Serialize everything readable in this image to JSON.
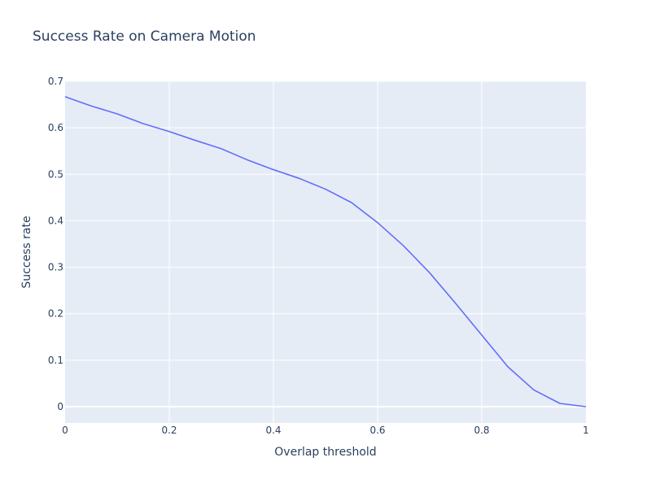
{
  "chart_data": {
    "type": "line",
    "title": "Success Rate on Camera Motion",
    "xlabel": "Overlap threshold",
    "ylabel": "Success rate",
    "xlim": [
      0,
      1
    ],
    "ylim": [
      -0.035,
      0.7
    ],
    "grid": true,
    "colors": {
      "plot_bg": "#e5ecf6",
      "grid": "#ffffff",
      "line": "#636efa",
      "text": "#2a3f5f"
    },
    "x_ticks": [
      {
        "value": 0,
        "label": "0"
      },
      {
        "value": 0.2,
        "label": "0.2"
      },
      {
        "value": 0.4,
        "label": "0.4"
      },
      {
        "value": 0.6,
        "label": "0.6"
      },
      {
        "value": 0.8,
        "label": "0.8"
      },
      {
        "value": 1,
        "label": "1"
      }
    ],
    "y_ticks": [
      {
        "value": 0,
        "label": "0"
      },
      {
        "value": 0.1,
        "label": "0.1"
      },
      {
        "value": 0.2,
        "label": "0.2"
      },
      {
        "value": 0.3,
        "label": "0.3"
      },
      {
        "value": 0.4,
        "label": "0.4"
      },
      {
        "value": 0.5,
        "label": "0.5"
      },
      {
        "value": 0.6,
        "label": "0.6"
      },
      {
        "value": 0.7,
        "label": "0.7"
      }
    ],
    "series": [
      {
        "x": [
          0,
          0.05,
          0.1,
          0.15,
          0.2,
          0.25,
          0.3,
          0.35,
          0.4,
          0.45,
          0.5,
          0.55,
          0.6,
          0.65,
          0.7,
          0.75,
          0.8,
          0.85,
          0.9,
          0.95,
          1.0
        ],
        "y": [
          0.667,
          0.647,
          0.63,
          0.609,
          0.592,
          0.573,
          0.555,
          0.531,
          0.51,
          0.491,
          0.468,
          0.439,
          0.396,
          0.346,
          0.288,
          0.222,
          0.154,
          0.086,
          0.036,
          0.007,
          0.0
        ]
      }
    ]
  }
}
